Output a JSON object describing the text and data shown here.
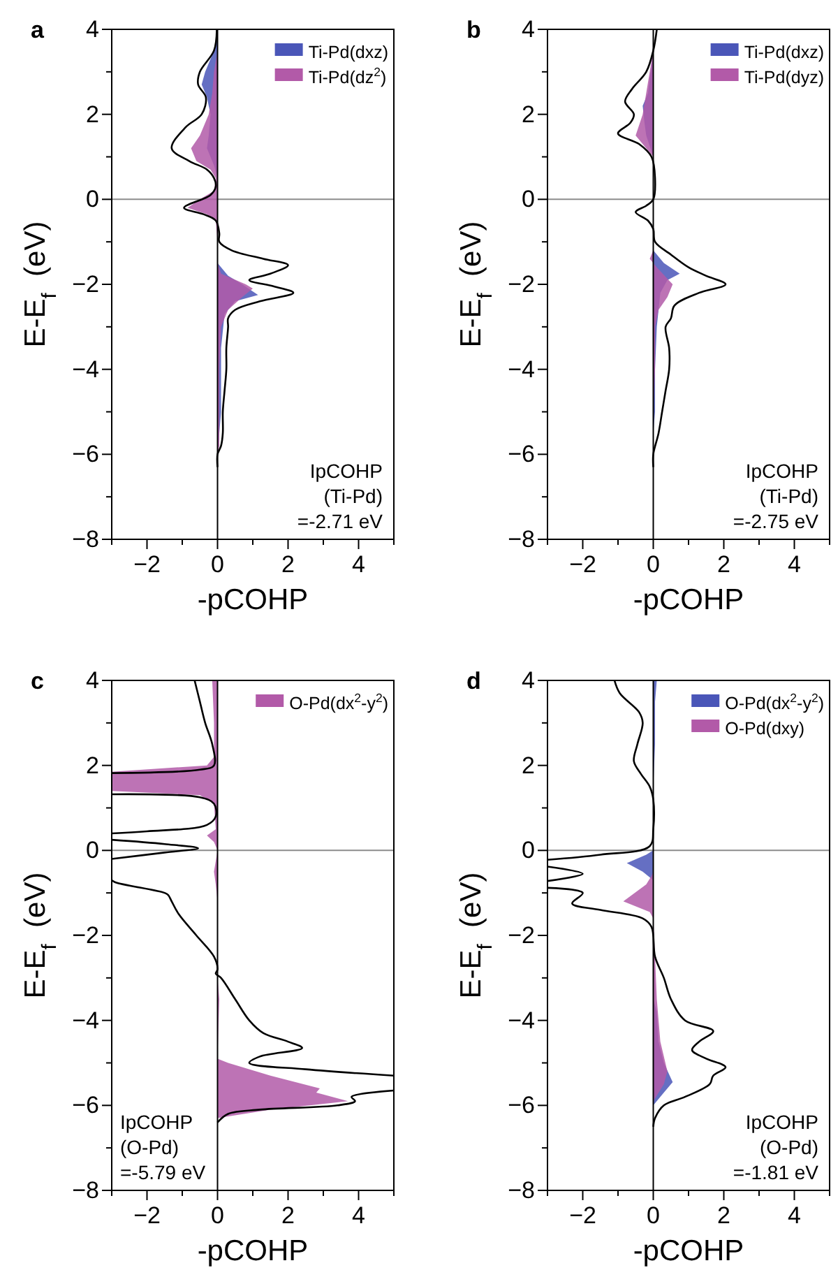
{
  "chart_data": [
    {
      "type": "line",
      "title": "a",
      "xlabel": "-pCOHP",
      "ylabel": "E-E$_{f}$  (eV)",
      "xlim": [
        -3,
        5
      ],
      "ylim": [
        -8,
        4
      ],
      "xticks": [
        {
          "value": -3,
          "label": null
        },
        -2,
        {
          "value": -1,
          "label": null
        },
        0,
        {
          "value": 1,
          "label": null
        },
        2,
        {
          "value": 3,
          "label": null
        },
        4,
        {
          "value": 5,
          "label": null
        }
      ],
      "yticks": [
        -8,
        {
          "value": -7,
          "label": null
        },
        -6,
        {
          "value": -5,
          "label": null
        },
        -4,
        {
          "value": -3,
          "label": null
        },
        -2,
        {
          "value": -1,
          "label": null
        },
        0,
        {
          "value": 1,
          "label": null
        },
        2,
        {
          "value": 3,
          "label": null
        },
        4
      ],
      "legend": "top right",
      "annotations": [
        "IpCOHP\n(Ti-Pd)\n=-2.71 eV"
      ],
      "ref_lines": [
        {
          "axis": "y",
          "value": 0,
          "color": "#8c8c8c"
        },
        {
          "axis": "x",
          "value": 0,
          "color": "#000000"
        }
      ],
      "series": [
        {
          "type": "area",
          "name": "Ti-Pd(dxz)",
          "color": "#4a56b8",
          "x": [
            0,
            -0.1,
            -0.35,
            -0.45,
            -0.3,
            -0.2,
            -0.25,
            -0.3,
            -0.1,
            0,
            0,
            0.3,
            0.7,
            1.15,
            0.5,
            0.2,
            0.1,
            0.1,
            0.1,
            0.05,
            0
          ],
          "values": [
            3.8,
            3.5,
            3.0,
            2.7,
            2.4,
            2.0,
            1.5,
            1.2,
            0.8,
            0.5,
            -1.5,
            -1.8,
            -2.0,
            -2.25,
            -2.4,
            -2.7,
            -3.5,
            -4.5,
            -5.0,
            -5.5,
            -6.0
          ]
        },
        {
          "type": "area",
          "name": "Ti-Pd(dz$^{2}$)",
          "color": "#b25aa8",
          "x": [
            0,
            -0.1,
            -0.15,
            -0.25,
            -0.5,
            -0.75,
            -0.6,
            -0.2,
            -0.05,
            -0.1,
            -0.5,
            -0.85,
            -0.3,
            -0.05,
            0,
            0,
            0.1,
            0.8,
            1.0,
            0.7,
            0.3,
            0.1,
            0.05,
            0.05,
            0.05,
            0
          ],
          "values": [
            3.5,
            3.0,
            2.5,
            2.0,
            1.5,
            1.2,
            0.9,
            0.7,
            0.5,
            0.2,
            0.0,
            -0.2,
            -0.35,
            -0.5,
            -1.0,
            -1.5,
            -1.75,
            -2.0,
            -2.1,
            -2.3,
            -2.6,
            -3.0,
            -4.0,
            -5.0,
            -5.8,
            -6.0
          ]
        },
        {
          "color": "#000000",
          "x": [
            -0.02,
            -0.1,
            -0.5,
            -0.55,
            -0.33,
            -0.45,
            -0.9,
            -1.3,
            -0.8,
            -0.3,
            -0.1,
            -0.05,
            -0.2,
            -0.95,
            -0.4,
            -0.05,
            0.05,
            0.05,
            0.4,
            1.3,
            2.0,
            1.5,
            0.9,
            1.6,
            2.15,
            1.2,
            0.5,
            0.3,
            0.3,
            0.25,
            0.25,
            0.2,
            0.15,
            0.15,
            0.1,
            0,
            0
          ],
          "values": [
            4.0,
            3.5,
            3.0,
            2.7,
            2.4,
            2.0,
            1.7,
            1.2,
            0.9,
            0.7,
            0.5,
            0.3,
            0.1,
            -0.2,
            -0.35,
            -0.5,
            -0.8,
            -1.0,
            -1.2,
            -1.4,
            -1.55,
            -1.75,
            -1.9,
            -2.05,
            -2.2,
            -2.4,
            -2.6,
            -2.8,
            -3.0,
            -3.5,
            -4.0,
            -4.5,
            -5.0,
            -5.5,
            -5.8,
            -6.0,
            -6.3
          ]
        }
      ]
    },
    {
      "type": "line",
      "title": "b",
      "xlabel": "-pCOHP",
      "ylabel": "E-E$_{f}$  (eV)",
      "xlim": [
        -3,
        5
      ],
      "ylim": [
        -8,
        4
      ],
      "xticks": [
        {
          "value": -3,
          "label": null
        },
        -2,
        {
          "value": -1,
          "label": null
        },
        0,
        {
          "value": 1,
          "label": null
        },
        2,
        {
          "value": 3,
          "label": null
        },
        4,
        {
          "value": 5,
          "label": null
        }
      ],
      "yticks": [
        -8,
        {
          "value": -7,
          "label": null
        },
        -6,
        {
          "value": -5,
          "label": null
        },
        -4,
        {
          "value": -3,
          "label": null
        },
        -2,
        {
          "value": -1,
          "label": null
        },
        0,
        {
          "value": 1,
          "label": null
        },
        2,
        {
          "value": 3,
          "label": null
        },
        4
      ],
      "legend": "top right",
      "annotations": [
        "IpCOHP\n(Ti-Pd)\n=-2.75 eV"
      ],
      "ref_lines": [
        {
          "axis": "y",
          "value": 0,
          "color": "#8c8c8c"
        },
        {
          "axis": "x",
          "value": 0,
          "color": "#000000"
        }
      ],
      "series": [
        {
          "type": "area",
          "name": "Ti-Pd(dxz)",
          "color": "#4a56b8",
          "x": [
            0,
            -0.15,
            -0.3,
            -0.25,
            -0.2,
            0,
            0,
            0.3,
            0.75,
            0.4,
            0.2,
            0.1,
            0.05,
            0.05,
            0
          ],
          "values": [
            3.5,
            2.5,
            2.2,
            1.8,
            1.5,
            1.0,
            -1.2,
            -1.5,
            -1.75,
            -1.9,
            -2.2,
            -3.0,
            -4.0,
            -5.0,
            -5.5
          ]
        },
        {
          "type": "area",
          "name": "Ti-Pd(dyz)",
          "color": "#b25aa8",
          "x": [
            0,
            -0.1,
            -0.2,
            -0.3,
            -0.5,
            -0.2,
            0,
            0,
            -0.1,
            0.1,
            0.55,
            0.4,
            0.15,
            0.05,
            0.05,
            0
          ],
          "values": [
            3.5,
            3.0,
            2.5,
            2.0,
            1.5,
            1.2,
            1.0,
            -1.2,
            -1.4,
            -1.6,
            -2.0,
            -2.3,
            -2.6,
            -3.0,
            -4.0,
            -5.0
          ]
        },
        {
          "color": "#000000",
          "x": [
            0.1,
            0.0,
            -0.2,
            -0.6,
            -0.8,
            -0.55,
            -0.65,
            -1.0,
            -0.4,
            -0.05,
            0.05,
            0,
            -0.2,
            -0.5,
            -0.15,
            0,
            0.05,
            0.5,
            1.0,
            1.5,
            2.05,
            1.3,
            0.6,
            0.5,
            0.35,
            0.45,
            0.45,
            0.35,
            0.25,
            0.15,
            0,
            0
          ],
          "values": [
            4.0,
            3.5,
            3.0,
            2.6,
            2.3,
            2.0,
            1.8,
            1.55,
            1.3,
            1.0,
            0.5,
            0.0,
            -0.15,
            -0.3,
            -0.5,
            -0.7,
            -1.0,
            -1.3,
            -1.6,
            -1.8,
            -2.0,
            -2.2,
            -2.5,
            -2.8,
            -3.0,
            -3.5,
            -4.0,
            -4.5,
            -5.0,
            -5.5,
            -6.0,
            -6.3
          ]
        }
      ]
    },
    {
      "type": "line",
      "title": "c",
      "xlabel": "-pCOHP",
      "ylabel": "E-E$_{f}$  (eV)",
      "xlim": [
        -3,
        5
      ],
      "ylim": [
        -8,
        4
      ],
      "xticks": [
        {
          "value": -3,
          "label": null
        },
        -2,
        {
          "value": -1,
          "label": null
        },
        0,
        {
          "value": 1,
          "label": null
        },
        2,
        {
          "value": 3,
          "label": null
        },
        4,
        {
          "value": 5,
          "label": null
        }
      ],
      "yticks": [
        -8,
        {
          "value": -7,
          "label": null
        },
        -6,
        {
          "value": -5,
          "label": null
        },
        -4,
        {
          "value": -3,
          "label": null
        },
        -2,
        {
          "value": -1,
          "label": null
        },
        0,
        {
          "value": 1,
          "label": null
        },
        2,
        {
          "value": 3,
          "label": null
        },
        4
      ],
      "legend": "top right",
      "annotations": [
        "IpCOHP\n(O-Pd)\n=-5.79 eV"
      ],
      "ref_lines": [
        {
          "axis": "y",
          "value": 0,
          "color": "#8c8c8c"
        },
        {
          "axis": "x",
          "value": 0,
          "color": "#000000"
        }
      ],
      "series": [
        {
          "type": "area",
          "name": "O-Pd(dx$^{2}$-y$^{2}$)",
          "color": "#b25aa8",
          "x": [
            0,
            -0.15,
            -0.1,
            -0.1,
            -0.3,
            -3,
            -3,
            -0.5,
            -0.1,
            -0.05,
            -0.3,
            -0.1,
            0,
            -0.1,
            -0.05,
            0,
            0,
            0.05,
            0,
            0.3,
            1.5,
            2.9,
            2.8,
            3.7,
            1.5,
            0
          ],
          "values": [
            4.0,
            4.0,
            3.0,
            2.2,
            2.0,
            1.85,
            1.4,
            1.3,
            1.1,
            0.5,
            0.35,
            0.2,
            0.0,
            -0.5,
            -0.8,
            -1.2,
            -3.0,
            -3.5,
            -4.9,
            -5.0,
            -5.3,
            -5.6,
            -5.7,
            -5.9,
            -6.1,
            -6.3
          ]
        },
        {
          "color": "#000000",
          "x": [
            -0.65,
            -0.5,
            -0.35,
            -0.15,
            -0.1,
            -0.5,
            -3,
            null,
            -3,
            -0.5,
            -0.1,
            -0.05,
            -0.3,
            -2.0,
            -3,
            null,
            -3,
            -1.5,
            -0.55,
            -1.5,
            -3,
            null,
            -3,
            -2.9,
            -1.5,
            -1.4,
            -1.3,
            -1.1,
            -0.6,
            -0.1,
            0,
            -0.05,
            0.1,
            0.5,
            0.9,
            1.3,
            2.0,
            2.4,
            1.2,
            0.9,
            2.5,
            5,
            null,
            5,
            3.8,
            3.9,
            3.4,
            1.2,
            0.3,
            0
          ],
          "values": [
            4.0,
            3.5,
            3.0,
            2.5,
            2.0,
            1.9,
            1.82,
            null,
            1.32,
            1.25,
            1.1,
            0.8,
            0.6,
            0.45,
            0.4,
            null,
            0.25,
            0.15,
            0.05,
            -0.05,
            -0.2,
            null,
            -0.7,
            -0.75,
            -1.0,
            -1.05,
            -1.2,
            -1.5,
            -2.0,
            -2.5,
            -2.8,
            -2.9,
            -3.0,
            -3.5,
            -4.0,
            -4.3,
            -4.5,
            -4.65,
            -4.85,
            -5.0,
            -5.15,
            -5.3,
            null,
            -5.65,
            -5.8,
            -5.9,
            -6.0,
            -6.1,
            -6.2,
            -6.4
          ]
        }
      ]
    },
    {
      "type": "line",
      "title": "d",
      "xlabel": "-pCOHP",
      "ylabel": "E-E$_{f}$  (eV)",
      "xlim": [
        -3,
        5
      ],
      "ylim": [
        -8,
        4
      ],
      "xticks": [
        {
          "value": -3,
          "label": null
        },
        -2,
        {
          "value": -1,
          "label": null
        },
        0,
        {
          "value": 1,
          "label": null
        },
        2,
        {
          "value": 3,
          "label": null
        },
        4,
        {
          "value": 5,
          "label": null
        }
      ],
      "yticks": [
        -8,
        {
          "value": -7,
          "label": null
        },
        -6,
        {
          "value": -5,
          "label": null
        },
        -4,
        {
          "value": -3,
          "label": null
        },
        -2,
        {
          "value": -1,
          "label": null
        },
        0,
        {
          "value": 1,
          "label": null
        },
        2,
        {
          "value": 3,
          "label": null
        },
        4
      ],
      "legend": "top right",
      "annotations": [
        "IpCOHP\n(O-Pd)\n=-1.81 eV"
      ],
      "ref_lines": [
        {
          "axis": "y",
          "value": 0,
          "color": "#8c8c8c"
        },
        {
          "axis": "x",
          "value": 0,
          "color": "#000000"
        }
      ],
      "series": [
        {
          "type": "area",
          "name": "O-Pd(dx$^{2}$-y$^{2}$)",
          "color": "#4a56b8",
          "x": [
            0,
            0.1,
            0.05,
            0.05,
            0,
            0,
            -0.2,
            -0.75,
            -0.3,
            0,
            0,
            0.1,
            0.15,
            0.3,
            0.55,
            0.3,
            0
          ],
          "values": [
            4.0,
            4.0,
            3.5,
            2.5,
            1.5,
            0.0,
            -0.1,
            -0.3,
            -0.5,
            -0.7,
            -3.5,
            -3.8,
            -4.5,
            -5.0,
            -5.45,
            -5.7,
            -6.0
          ]
        },
        {
          "type": "area",
          "name": "O-Pd(dxy)",
          "color": "#b25aa8",
          "x": [
            0,
            0,
            -0.05,
            -0.2,
            -0.85,
            -0.1,
            0,
            0.05,
            0.1,
            0.2,
            0.4,
            0.3,
            0
          ],
          "values": [
            1.5,
            -0.5,
            -0.6,
            -0.8,
            -1.2,
            -1.45,
            -1.6,
            -2.5,
            -3.5,
            -4.5,
            -5.2,
            -5.5,
            -5.9
          ]
        },
        {
          "color": "#000000",
          "x": [
            -1.1,
            -0.95,
            -0.4,
            -0.3,
            -0.45,
            -0.55,
            -0.35,
            -0.1,
            0,
            0,
            -0.1,
            -1.5,
            -3,
            null,
            -3,
            -2.0,
            -3,
            null,
            -3,
            -2.0,
            -2.3,
            -1.5,
            -0.3,
            -0.05,
            0.05,
            0.3,
            0.5,
            0.9,
            1.7,
            1.3,
            1.1,
            1.5,
            2.05,
            1.7,
            1.6,
            0.9,
            0.3,
            0.05,
            0
          ],
          "values": [
            4.0,
            3.7,
            3.25,
            3.0,
            2.5,
            2.1,
            1.8,
            1.5,
            1.2,
            0.5,
            0.1,
            -0.1,
            -0.22,
            null,
            -0.38,
            -0.55,
            -0.72,
            null,
            -0.88,
            -1.0,
            -1.25,
            -1.4,
            -1.6,
            -1.8,
            -2.5,
            -3.0,
            -3.5,
            -4.0,
            -4.25,
            -4.5,
            -4.7,
            -4.9,
            -5.1,
            -5.3,
            -5.5,
            -5.8,
            -6.0,
            -6.3,
            -6.5
          ]
        }
      ]
    }
  ]
}
